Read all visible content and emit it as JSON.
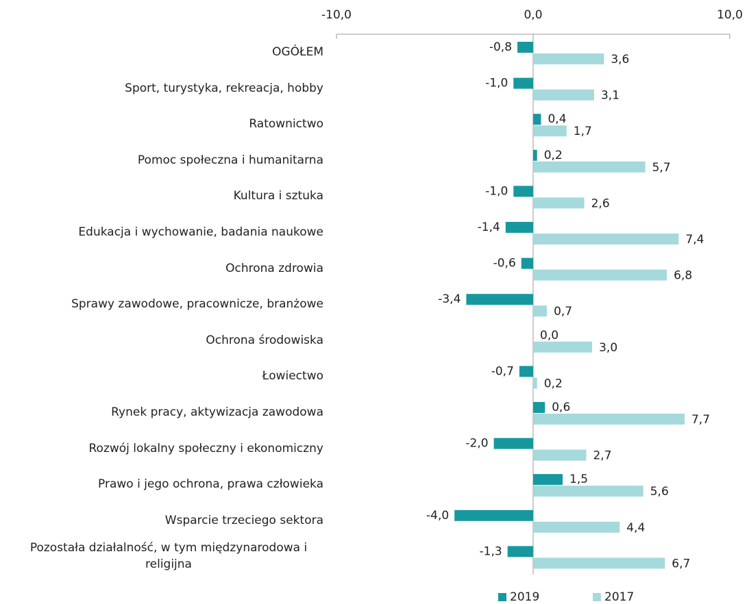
{
  "chart_data": {
    "type": "bar",
    "orientation": "horizontal",
    "categories": [
      "OGÓŁEM",
      "Sport, turystyka, rekreacja, hobby",
      "Ratownictwo",
      "Pomoc społeczna i humanitarna",
      "Kultura i sztuka",
      "Edukacja i wychowanie, badania naukowe",
      "Ochrona zdrowia",
      "Sprawy zawodowe, pracownicze, branżowe",
      "Ochrona środowiska",
      "Łowiectwo",
      "Rynek pracy, aktywizacja zawodowa",
      "Rozwój lokalny społeczny i ekonomiczny",
      "Prawo i jego ochrona, prawa człowieka",
      "Wsparcie trzeciego sektora",
      "Pozostała działalność, w tym międzynarodowa i religijna"
    ],
    "series": [
      {
        "name": "2019",
        "color": "#17989e",
        "values": [
          -0.8,
          -1.0,
          0.4,
          0.2,
          -1.0,
          -1.4,
          -0.6,
          -3.4,
          0.0,
          -0.7,
          0.6,
          -2.0,
          1.5,
          -4.0,
          -1.3
        ],
        "value_labels": [
          "-0,8",
          "-1,0",
          "0,4",
          "0,2",
          "-1,0",
          "-1,4",
          "-0,6",
          "-3,4",
          "0,0",
          "-0,7",
          "0,6",
          "-2,0",
          "1,5",
          "-4,0",
          "-1,3"
        ]
      },
      {
        "name": "2017",
        "color": "#a5d9dc",
        "values": [
          3.6,
          3.1,
          1.7,
          5.7,
          2.6,
          7.4,
          6.8,
          0.7,
          3.0,
          0.2,
          7.7,
          2.7,
          5.6,
          4.4,
          6.7
        ],
        "value_labels": [
          "3,6",
          "3,1",
          "1,7",
          "5,7",
          "2,6",
          "7,4",
          "6,8",
          "0,7",
          "3,0",
          "0,2",
          "7,7",
          "2,7",
          "5,6",
          "4,4",
          "6,7"
        ]
      }
    ],
    "xlim": [
      -10,
      10
    ],
    "xticks": [
      {
        "value": -10,
        "label": "-10,0"
      },
      {
        "value": 0,
        "label": "0,0"
      },
      {
        "value": 10,
        "label": "10,0"
      }
    ],
    "legend": "bottom"
  }
}
